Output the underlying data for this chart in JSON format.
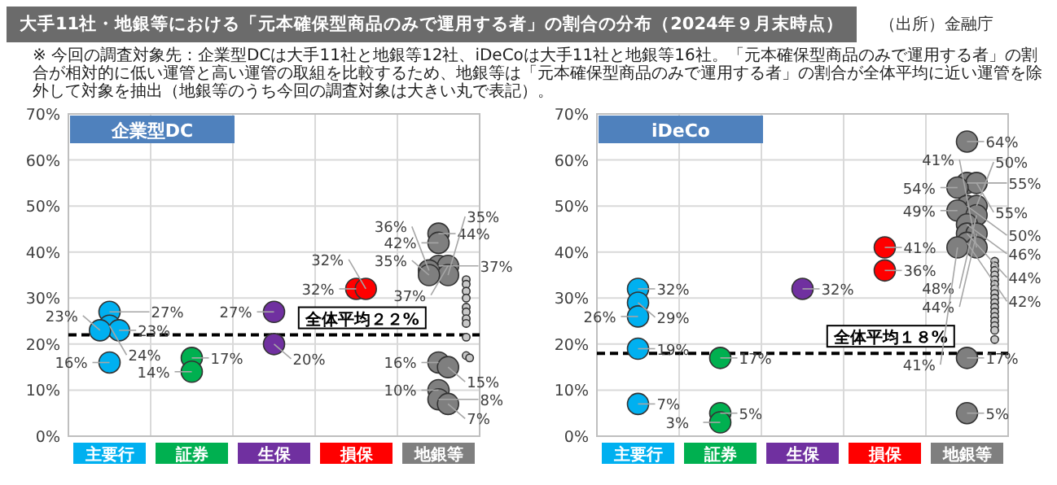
{
  "chart_data": [
    {
      "type": "scatter",
      "title": "企業型DC",
      "categories": [
        "主要行",
        "証券",
        "生保",
        "損保",
        "地銀等"
      ],
      "annotations": [
        "大手11社・地銀等における「元本確保型商品のみで運用する者」の割合の分布（2024年９月末時点）",
        "（出所）金融庁",
        "※ 今回の調査対象先：企業型DCは大手11社と地銀等12社、iDeCoは大手11社と地銀等16社。「元本確保型商品のみで運用する者」の割合が相対的に低い運管と高い運管の取組を比較するため、地銀等は「元本確保型商品のみで運用する者」の割合が全体平均に近い運管を除外して対象を抽出（地銀等のうち今回の調査対象は大きい丸で表記）。"
      ],
      "ylim": [
        0,
        70
      ],
      "yticks": [
        {
          "value": 0,
          "label": "0%"
        },
        {
          "value": 10,
          "label": "10%"
        },
        {
          "value": 20,
          "label": "20%"
        },
        {
          "value": 30,
          "label": "30%"
        },
        {
          "value": 40,
          "label": "40%"
        },
        {
          "value": 50,
          "label": "50%"
        },
        {
          "value": 60,
          "label": "60%"
        },
        {
          "value": 70,
          "label": "70%"
        }
      ],
      "grid": true,
      "marker": "circle",
      "ref_lines": [
        {
          "axis": "y",
          "value": 22,
          "label": "全体平均２２%",
          "color": "#000000",
          "line_style": "dashed"
        }
      ],
      "series": [
        {
          "color": "#00b0f0",
          "x": [
            "主要行",
            "主要行",
            "主要行",
            "主要行",
            "主要行"
          ],
          "values": [
            27,
            24,
            23,
            23,
            16
          ],
          "value_labels": [
            "27%",
            "24%",
            "23%",
            "23%",
            "16%"
          ]
        },
        {
          "color": "#00b050",
          "x": [
            "証券",
            "証券"
          ],
          "values": [
            17,
            14
          ],
          "value_labels": [
            "17%",
            "14%"
          ]
        },
        {
          "color": "#7030a0",
          "x": [
            "生保",
            "生保"
          ],
          "values": [
            27,
            20
          ],
          "value_labels": [
            "27%",
            "20%"
          ]
        },
        {
          "color": "#ff0000",
          "x": [
            "損保",
            "損保"
          ],
          "values": [
            32,
            32
          ],
          "value_labels": [
            "32%",
            "32%"
          ]
        },
        {
          "color": "#7f7f7f",
          "x": [
            "地銀等",
            "地銀等",
            "地銀等",
            "地銀等",
            "地銀等",
            "地銀等",
            "地銀等",
            "地銀等",
            "地銀等",
            "地銀等",
            "地銀等",
            "地銀等"
          ],
          "values": [
            44,
            42,
            37,
            37,
            36,
            35,
            35,
            16,
            15,
            10,
            8,
            7
          ],
          "value_labels": [
            "44%",
            "42%",
            "37%",
            "37%",
            "36%",
            "35%",
            "35%",
            "16%",
            "15%",
            "10%",
            "8%",
            "7%"
          ]
        },
        {
          "color": "#c8c8c8",
          "x": [
            "地銀等",
            "地銀等",
            "地銀等",
            "地銀等",
            "地銀等",
            "地銀等",
            "地銀等",
            "地銀等",
            "地銀等",
            "地銀等",
            "地銀等"
          ],
          "values": [
            34,
            33,
            31.5,
            30,
            28,
            27,
            25.5,
            24.5,
            21.5,
            17.5,
            17
          ]
        }
      ]
    },
    {
      "type": "scatter",
      "title": "iDeCo",
      "categories": [
        "主要行",
        "証券",
        "生保",
        "損保",
        "地銀等"
      ],
      "ylim": [
        0,
        70
      ],
      "yticks": [
        {
          "value": 0,
          "label": "0%"
        },
        {
          "value": 10,
          "label": "10%"
        },
        {
          "value": 20,
          "label": "20%"
        },
        {
          "value": 30,
          "label": "30%"
        },
        {
          "value": 40,
          "label": "40%"
        },
        {
          "value": 50,
          "label": "50%"
        },
        {
          "value": 60,
          "label": "60%"
        },
        {
          "value": 70,
          "label": "70%"
        }
      ],
      "grid": true,
      "marker": "circle",
      "ref_lines": [
        {
          "axis": "y",
          "value": 18,
          "label": "全体平均１８%",
          "color": "#000000",
          "line_style": "dashed"
        }
      ],
      "series": [
        {
          "color": "#00b0f0",
          "x": [
            "主要行",
            "主要行",
            "主要行",
            "主要行",
            "主要行"
          ],
          "values": [
            32,
            29,
            26,
            19,
            7
          ],
          "value_labels": [
            "32%",
            "29%",
            "26%",
            "19%",
            "7%"
          ]
        },
        {
          "color": "#00b050",
          "x": [
            "証券",
            "証券",
            "証券"
          ],
          "values": [
            17,
            5,
            3
          ],
          "value_labels": [
            "17%",
            "5%",
            "3%"
          ]
        },
        {
          "color": "#7030a0",
          "x": [
            "生保"
          ],
          "values": [
            32
          ],
          "value_labels": [
            "32%"
          ]
        },
        {
          "color": "#ff0000",
          "x": [
            "損保",
            "損保"
          ],
          "values": [
            41,
            36
          ],
          "value_labels": [
            "41%",
            "36%"
          ]
        },
        {
          "color": "#7f7f7f",
          "x": [
            "地銀等",
            "地銀等",
            "地銀等",
            "地銀等",
            "地銀等",
            "地銀等",
            "地銀等",
            "地銀等",
            "地銀等",
            "地銀等",
            "地銀等",
            "地銀等",
            "地銀等",
            "地銀等",
            "地銀等",
            "地銀等"
          ],
          "values": [
            64,
            55,
            55,
            54,
            50,
            50,
            49,
            48,
            46,
            44,
            44,
            42,
            41,
            41,
            17,
            5
          ],
          "value_labels": [
            "64%",
            "55%",
            "55%",
            "54%",
            "50%",
            "50%",
            "49%",
            "48%",
            "46%",
            "44%",
            "44%",
            "42%",
            "41%",
            "41%",
            "17%",
            "5%"
          ]
        },
        {
          "color": "#c8c8c8",
          "x": [
            "地銀等",
            "地銀等",
            "地銀等",
            "地銀等",
            "地銀等",
            "地銀等",
            "地銀等",
            "地銀等",
            "地銀等",
            "地銀等",
            "地銀等",
            "地銀等",
            "地銀等",
            "地銀等",
            "地銀等",
            "地銀等",
            "地銀等"
          ],
          "values": [
            38,
            37,
            36,
            35,
            34,
            33,
            32,
            31,
            30,
            29,
            28,
            27,
            26,
            25,
            24,
            23,
            21
          ]
        }
      ]
    }
  ]
}
